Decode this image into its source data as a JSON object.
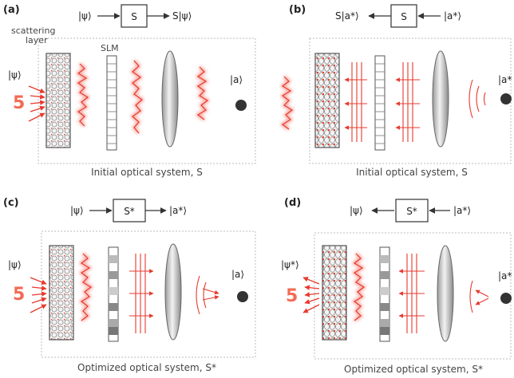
{
  "panels": [
    {
      "id": "a",
      "label": "(a)",
      "caption": "Initial optical system,  S",
      "block_label": "S",
      "input_ket": "|ψ⟩",
      "output_ket": "S|ψ⟩",
      "side_ket": "|ψ⟩",
      "detector_ket": "|a⟩",
      "source_label": "5",
      "layer_label_1": "scattering",
      "layer_label_2": "layer",
      "slm_label": "SLM"
    },
    {
      "id": "b",
      "label": "(b)",
      "caption": "Initial optical system,  S",
      "block_label": "S",
      "input_ket": "|a*⟩",
      "output_ket": "S|a*⟩",
      "detector_ket": "|a*"
    },
    {
      "id": "c",
      "label": "(c)",
      "caption": "Optimized optical system,  S*",
      "block_label": "S*",
      "input_ket": "|ψ⟩",
      "output_ket": "|a*⟩",
      "side_ket": "|ψ⟩",
      "detector_ket": "|a⟩",
      "source_label": "5"
    },
    {
      "id": "d",
      "label": "(d)",
      "caption": "Optimized optical system,  S*",
      "block_label": "S*",
      "input_ket": "|a*⟩",
      "output_ket": "|ψ⟩",
      "side_ket": "|ψ*⟩",
      "detector_ket": "|a*",
      "source_label": "5"
    }
  ],
  "colors": {
    "wave": "#e8392e",
    "glow": "#f7a29a",
    "box_border": "#bbbbbb",
    "detector": "#333333"
  }
}
